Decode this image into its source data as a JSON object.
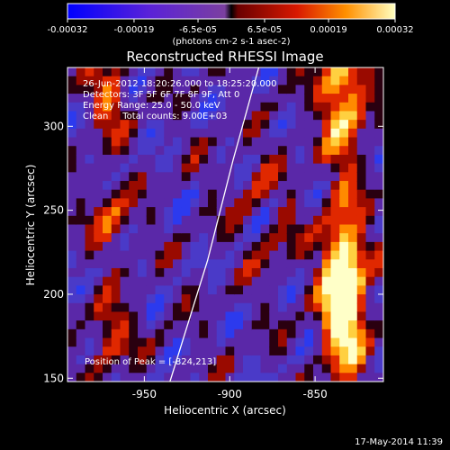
{
  "chart_data": {
    "type": "heatmap",
    "title": "Reconstructed RHESSI Image",
    "xlabel": "Heliocentric X (arcsec)",
    "ylabel": "Heliocentric Y (arcsec)",
    "xlim": [
      -995,
      -810
    ],
    "ylim": [
      148,
      335
    ],
    "x_ticks": [
      -950,
      -900,
      -850
    ],
    "x_tick_labels": [
      "-950",
      "-900",
      "-850"
    ],
    "y_ticks": [
      150,
      200,
      250,
      300
    ],
    "y_tick_labels": [
      "150",
      "200",
      "250",
      "300"
    ],
    "colorbar": {
      "range": [
        -0.00032,
        0.00032
      ],
      "ticks": [
        -0.00032,
        -0.00019,
        -6.5e-05,
        6.5e-05,
        0.00019,
        0.00032
      ],
      "tick_labels": [
        "-0.00032",
        "-0.00019",
        "-6.5e-05",
        "6.5e-05",
        "0.00019",
        "0.00032"
      ],
      "unit_label": "(photons cm-2 s-1 asec-2)"
    },
    "annotations": {
      "time_range": "26-Jun-2012 18:20:26.000 to 18:25:20.000",
      "detectors": "Detectors: 3F 5F 6F 7F 8F 9F, Att 0",
      "energy_range": "Energy Range: 25.0 - 50.0 keV",
      "clean_counts": "Clean     Total counts: 9.00E+03",
      "peak_position": "Position of Peak = [-824,213]"
    },
    "limb_curve": [
      [
        -935,
        148
      ],
      [
        -913,
        220
      ],
      [
        -898,
        280
      ],
      [
        -883,
        335
      ]
    ],
    "peak": [
      -824,
      213
    ]
  },
  "footer_date": "17-May-2014 11:39"
}
